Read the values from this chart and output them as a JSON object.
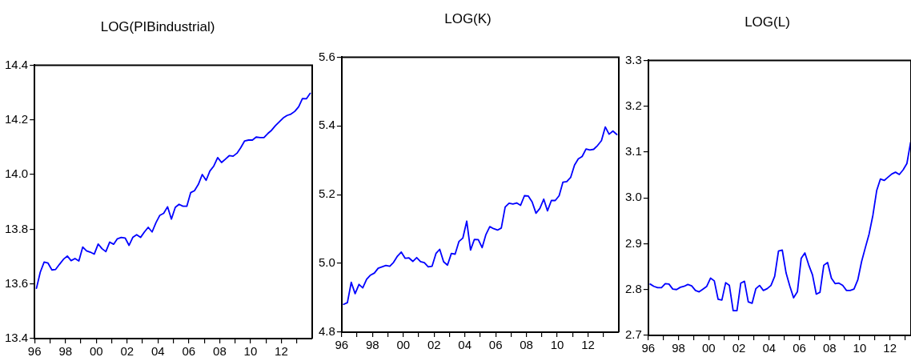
{
  "chart_data": [
    {
      "type": "line",
      "title": "LOG(PIBindustrial)",
      "x": [
        "1996-02-15",
        "1996-05-15",
        "1996-08-15",
        "1996-11-15",
        "1997-02-15",
        "1997-05-15",
        "1997-08-15",
        "1997-11-15",
        "1998-02-15",
        "1998-05-15",
        "1998-08-15",
        "1998-11-15",
        "1999-02-15",
        "1999-05-15",
        "1999-08-15",
        "1999-11-15",
        "2000-02-15",
        "2000-05-15",
        "2000-08-15",
        "2000-11-15",
        "2001-02-15",
        "2001-05-15",
        "2001-08-15",
        "2001-11-15",
        "2002-02-15",
        "2002-05-15",
        "2002-08-15",
        "2002-11-15",
        "2003-02-15",
        "2003-05-15",
        "2003-08-15",
        "2003-11-15",
        "2004-02-15",
        "2004-05-15",
        "2004-08-15",
        "2004-11-15",
        "2005-02-15",
        "2005-05-15",
        "2005-08-15",
        "2005-11-15",
        "2006-02-15",
        "2006-05-15",
        "2006-08-15",
        "2006-11-15",
        "2007-02-15",
        "2007-05-15",
        "2007-08-15",
        "2007-11-15",
        "2008-02-15",
        "2008-05-15",
        "2008-08-15",
        "2008-11-15",
        "2009-02-15",
        "2009-05-15",
        "2009-08-15",
        "2009-11-15",
        "2010-02-15",
        "2010-05-15",
        "2010-08-15",
        "2010-11-15",
        "2011-02-15",
        "2011-05-15",
        "2011-08-15",
        "2011-11-15",
        "2012-02-15",
        "2012-05-15",
        "2012-08-15",
        "2012-11-15",
        "2013-02-15",
        "2013-05-15",
        "2013-08-15",
        "2013-11-15"
      ],
      "series": [
        {
          "color": "#0000ff",
          "values": [
            13.584,
            13.643,
            13.68,
            13.676,
            13.651,
            13.653,
            13.672,
            13.69,
            13.702,
            13.685,
            13.693,
            13.684,
            13.735,
            13.721,
            13.716,
            13.709,
            13.746,
            13.729,
            13.718,
            13.753,
            13.745,
            13.765,
            13.77,
            13.768,
            13.741,
            13.77,
            13.78,
            13.77,
            13.79,
            13.807,
            13.79,
            13.824,
            13.851,
            13.858,
            13.882,
            13.837,
            13.88,
            13.891,
            13.884,
            13.884,
            13.934,
            13.941,
            13.964,
            14.0,
            13.979,
            14.013,
            14.031,
            14.062,
            14.044,
            14.056,
            14.069,
            14.067,
            14.078,
            14.098,
            14.123,
            14.126,
            14.126,
            14.137,
            14.135,
            14.135,
            14.15,
            14.162,
            14.179,
            14.193,
            14.207,
            14.216,
            14.221,
            14.231,
            14.248,
            14.278,
            14.277,
            14.297
          ]
        }
      ],
      "xlim": [
        "1996",
        "2014"
      ],
      "xticks": [
        {
          "value": "1996",
          "label": "96"
        },
        {
          "value": "1997",
          "label": null
        },
        {
          "value": "1998",
          "label": "98"
        },
        {
          "value": "1999",
          "label": null
        },
        {
          "value": "2000",
          "label": "00"
        },
        {
          "value": "2001",
          "label": null
        },
        {
          "value": "2002",
          "label": "02"
        },
        {
          "value": "2003",
          "label": null
        },
        {
          "value": "2004",
          "label": "04"
        },
        {
          "value": "2005",
          "label": null
        },
        {
          "value": "2006",
          "label": "06"
        },
        {
          "value": "2007",
          "label": null
        },
        {
          "value": "2008",
          "label": "08"
        },
        {
          "value": "2009",
          "label": null
        },
        {
          "value": "2010",
          "label": "10"
        },
        {
          "value": "2011",
          "label": null
        },
        {
          "value": "2012",
          "label": "12"
        },
        {
          "value": "2013",
          "label": null
        }
      ],
      "ylim": [
        13.4,
        14.4
      ],
      "yticks": [
        13.4,
        13.6,
        13.8,
        {
          "value": 14,
          "label": "14.0"
        },
        14.2,
        14.4
      ],
      "legend": false
    },
    {
      "type": "line",
      "title": "LOG(K)",
      "x": [
        "1996-02-15",
        "1996-05-15",
        "1996-08-15",
        "1996-11-15",
        "1997-02-15",
        "1997-05-15",
        "1997-08-15",
        "1997-11-15",
        "1998-02-15",
        "1998-05-15",
        "1998-08-15",
        "1998-11-15",
        "1999-02-15",
        "1999-05-15",
        "1999-08-15",
        "1999-11-15",
        "2000-02-15",
        "2000-05-15",
        "2000-08-15",
        "2000-11-15",
        "2001-02-15",
        "2001-05-15",
        "2001-08-15",
        "2001-11-15",
        "2002-02-15",
        "2002-05-15",
        "2002-08-15",
        "2002-11-15",
        "2003-02-15",
        "2003-05-15",
        "2003-08-15",
        "2003-11-15",
        "2004-02-15",
        "2004-05-15",
        "2004-08-15",
        "2004-11-15",
        "2005-02-15",
        "2005-05-15",
        "2005-08-15",
        "2005-11-15",
        "2006-02-15",
        "2006-05-15",
        "2006-08-15",
        "2006-11-15",
        "2007-02-15",
        "2007-05-15",
        "2007-08-15",
        "2007-11-15",
        "2008-02-15",
        "2008-05-15",
        "2008-08-15",
        "2008-11-15",
        "2009-02-15",
        "2009-05-15",
        "2009-08-15",
        "2009-11-15",
        "2010-02-15",
        "2010-05-15",
        "2010-08-15",
        "2010-11-15",
        "2011-02-15",
        "2011-05-15",
        "2011-08-15",
        "2011-11-15",
        "2012-02-15",
        "2012-05-15",
        "2012-08-15",
        "2012-11-15",
        "2013-02-15",
        "2013-05-15",
        "2013-08-15",
        "2013-11-15"
      ],
      "series": [
        {
          "color": "#0000ff",
          "values": [
            4.881,
            4.886,
            4.945,
            4.912,
            4.939,
            4.929,
            4.954,
            4.966,
            4.972,
            4.986,
            4.99,
            4.994,
            4.992,
            5.003,
            5.021,
            5.033,
            5.015,
            5.016,
            5.006,
            5.017,
            5.005,
            5.002,
            4.99,
            4.992,
            5.029,
            5.041,
            5.005,
            4.995,
            5.029,
            5.027,
            5.064,
            5.074,
            5.123,
            5.039,
            5.07,
            5.069,
            5.046,
            5.084,
            5.107,
            5.101,
            5.097,
            5.103,
            5.164,
            5.175,
            5.173,
            5.176,
            5.169,
            5.197,
            5.196,
            5.179,
            5.146,
            5.16,
            5.187,
            5.153,
            5.183,
            5.183,
            5.197,
            5.236,
            5.238,
            5.25,
            5.286,
            5.304,
            5.311,
            5.333,
            5.33,
            5.332,
            5.343,
            5.357,
            5.397,
            5.376,
            5.385,
            5.375
          ]
        }
      ],
      "xlim": [
        "1996",
        "2014"
      ],
      "xticks": [
        {
          "value": "1996",
          "label": "96"
        },
        {
          "value": "1997",
          "label": null
        },
        {
          "value": "1998",
          "label": "98"
        },
        {
          "value": "1999",
          "label": null
        },
        {
          "value": "2000",
          "label": "00"
        },
        {
          "value": "2001",
          "label": null
        },
        {
          "value": "2002",
          "label": "02"
        },
        {
          "value": "2003",
          "label": null
        },
        {
          "value": "2004",
          "label": "04"
        },
        {
          "value": "2005",
          "label": null
        },
        {
          "value": "2006",
          "label": "06"
        },
        {
          "value": "2007",
          "label": null
        },
        {
          "value": "2008",
          "label": "08"
        },
        {
          "value": "2009",
          "label": null
        },
        {
          "value": "2010",
          "label": "10"
        },
        {
          "value": "2011",
          "label": null
        },
        {
          "value": "2012",
          "label": "12"
        },
        {
          "value": "2013",
          "label": null
        }
      ],
      "ylim": [
        4.8,
        5.6
      ],
      "yticks": [
        4.8,
        {
          "value": 5,
          "label": "5.0"
        },
        5.2,
        5.4,
        5.6
      ],
      "legend": false
    },
    {
      "type": "line",
      "title": "LOG(L)",
      "x": [
        "1996-02-15",
        "1996-05-15",
        "1996-08-15",
        "1996-11-15",
        "1997-02-15",
        "1997-05-15",
        "1997-08-15",
        "1997-11-15",
        "1998-02-15",
        "1998-05-15",
        "1998-08-15",
        "1998-11-15",
        "1999-02-15",
        "1999-05-15",
        "1999-08-15",
        "1999-11-15",
        "2000-02-15",
        "2000-05-15",
        "2000-08-15",
        "2000-11-15",
        "2001-02-15",
        "2001-05-15",
        "2001-08-15",
        "2001-11-15",
        "2002-02-15",
        "2002-05-15",
        "2002-08-15",
        "2002-11-15",
        "2003-02-15",
        "2003-05-15",
        "2003-08-15",
        "2003-11-15",
        "2004-02-15",
        "2004-05-15",
        "2004-08-15",
        "2004-11-15",
        "2005-02-15",
        "2005-05-15",
        "2005-08-15",
        "2005-11-15",
        "2006-02-15",
        "2006-05-15",
        "2006-08-15",
        "2006-11-15",
        "2007-02-15",
        "2007-05-15",
        "2007-08-15",
        "2007-11-15",
        "2008-02-15",
        "2008-05-15",
        "2008-08-15",
        "2008-11-15",
        "2009-02-15",
        "2009-05-15",
        "2009-08-15",
        "2009-11-15",
        "2010-02-15",
        "2010-05-15",
        "2010-08-15",
        "2010-11-15",
        "2011-02-15",
        "2011-05-15",
        "2011-08-15",
        "2011-11-15",
        "2012-02-15",
        "2012-05-15",
        "2012-08-15",
        "2012-11-15",
        "2013-02-15",
        "2013-05-15"
      ],
      "series": [
        {
          "color": "#0000ff",
          "values": [
            2.812,
            2.807,
            2.804,
            2.804,
            2.813,
            2.812,
            2.801,
            2.8,
            2.805,
            2.807,
            2.811,
            2.808,
            2.798,
            2.795,
            2.801,
            2.807,
            2.825,
            2.819,
            2.779,
            2.777,
            2.815,
            2.809,
            2.754,
            2.754,
            2.814,
            2.818,
            2.773,
            2.77,
            2.802,
            2.809,
            2.798,
            2.802,
            2.809,
            2.829,
            2.884,
            2.886,
            2.836,
            2.808,
            2.782,
            2.795,
            2.868,
            2.88,
            2.854,
            2.832,
            2.79,
            2.794,
            2.853,
            2.859,
            2.825,
            2.813,
            2.814,
            2.809,
            2.798,
            2.798,
            2.801,
            2.821,
            2.861,
            2.891,
            2.921,
            2.962,
            3.016,
            3.041,
            3.038,
            3.045,
            3.052,
            3.056,
            3.051,
            3.061,
            3.075,
            3.121
          ]
        }
      ],
      "xlim": [
        "1996",
        "2013-05-25"
      ],
      "xticks": [
        {
          "value": "1996",
          "label": "96"
        },
        {
          "value": "1997",
          "label": null
        },
        {
          "value": "1998",
          "label": "98"
        },
        {
          "value": "1999",
          "label": null
        },
        {
          "value": "2000",
          "label": "00"
        },
        {
          "value": "2001",
          "label": null
        },
        {
          "value": "2002",
          "label": "02"
        },
        {
          "value": "2003",
          "label": null
        },
        {
          "value": "2004",
          "label": "04"
        },
        {
          "value": "2005",
          "label": null
        },
        {
          "value": "2006",
          "label": "06"
        },
        {
          "value": "2007",
          "label": null
        },
        {
          "value": "2008",
          "label": "08"
        },
        {
          "value": "2009",
          "label": null
        },
        {
          "value": "2010",
          "label": "10"
        },
        {
          "value": "2011",
          "label": null
        },
        {
          "value": "2012",
          "label": "12"
        },
        {
          "value": "2013",
          "label": null
        }
      ],
      "ylim": [
        2.7,
        3.3
      ],
      "yticks": [
        2.7,
        2.8,
        2.9,
        {
          "value": 3,
          "label": "3.0"
        },
        3.1,
        3.2,
        3.3
      ],
      "legend": false
    }
  ]
}
